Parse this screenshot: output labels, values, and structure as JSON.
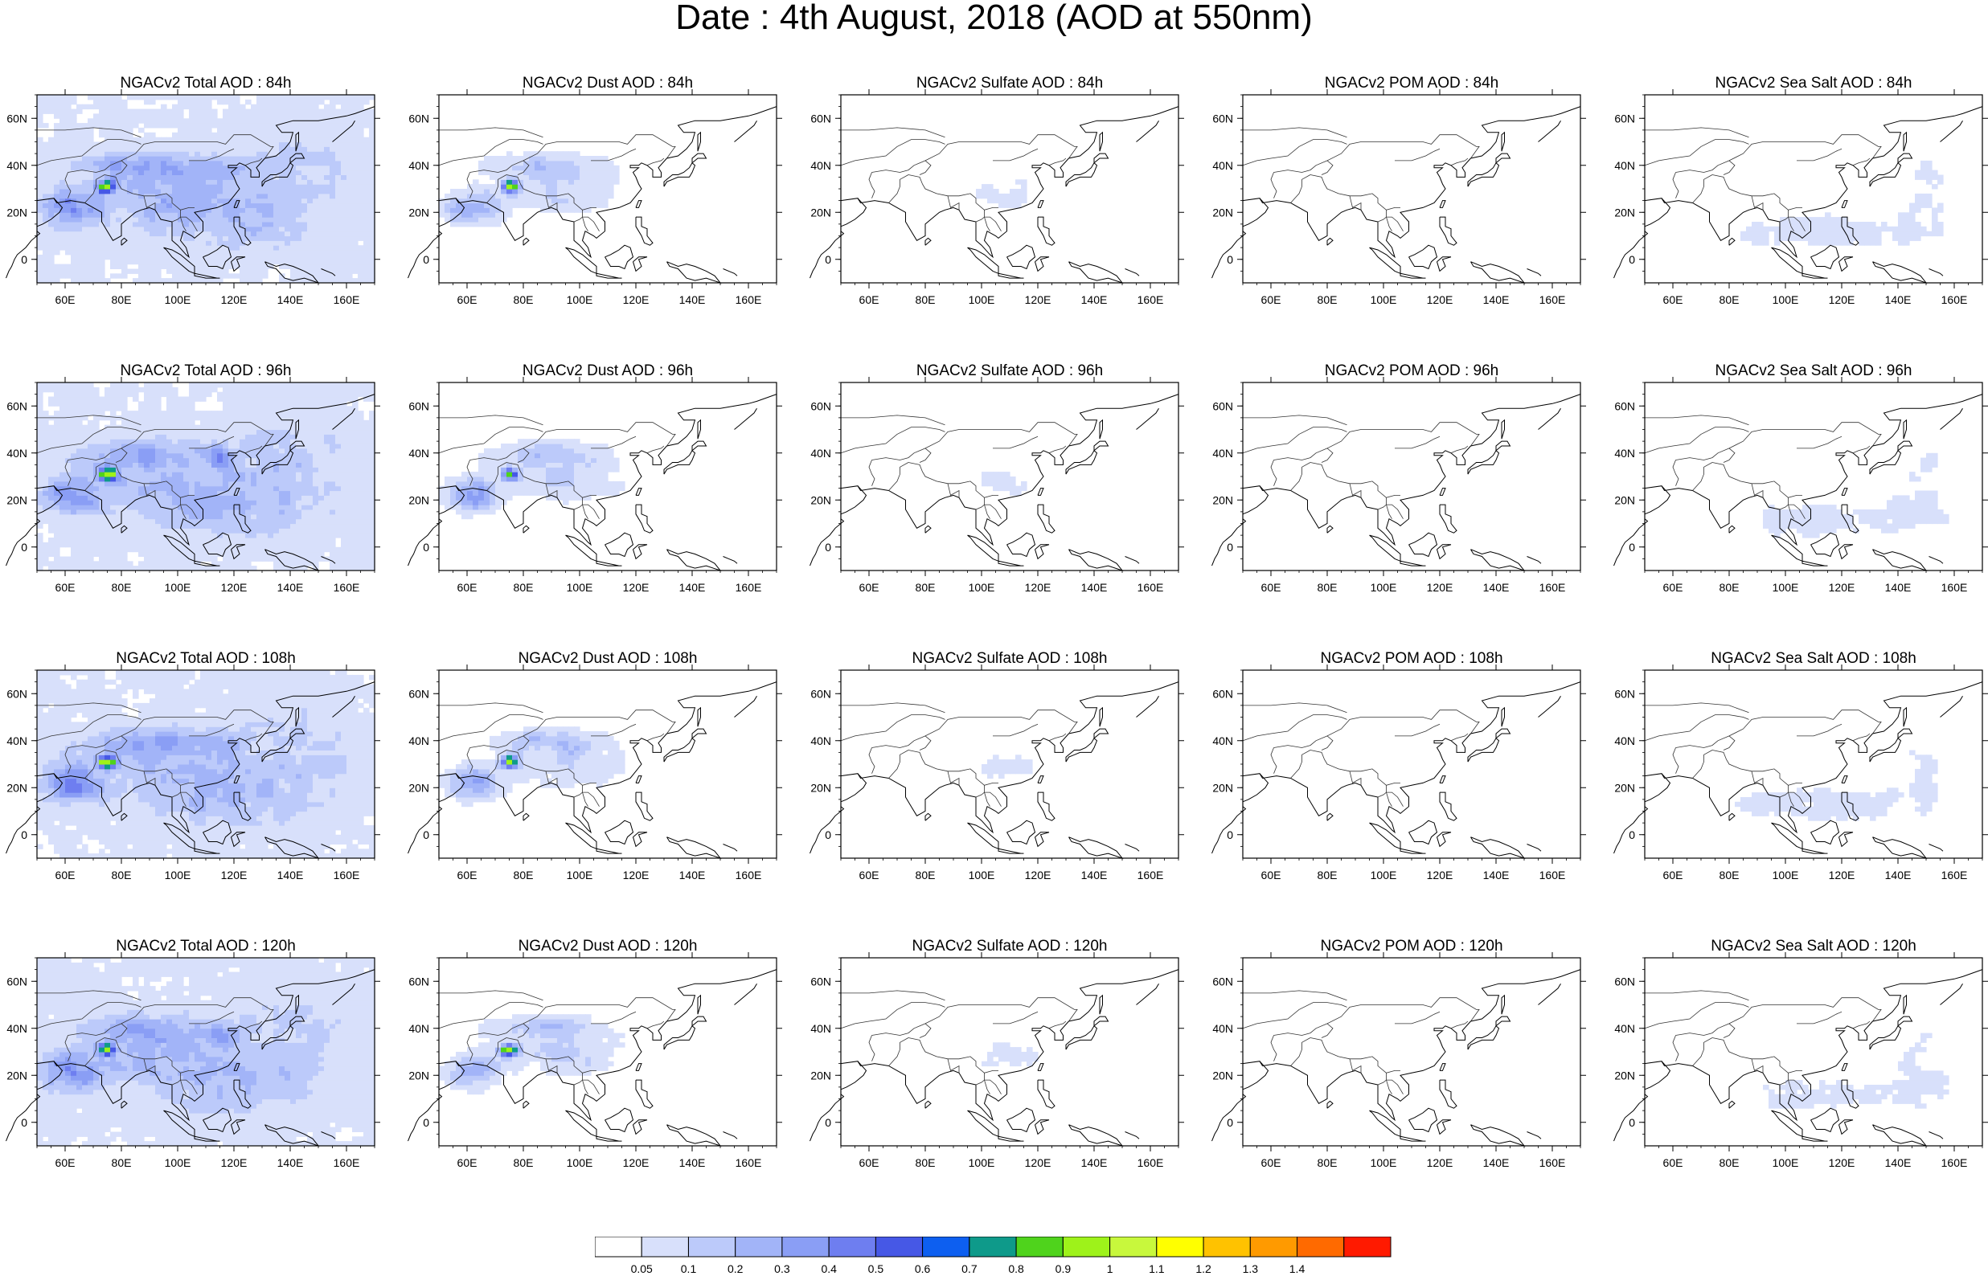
{
  "title": "Date : 4th August, 2018 (AOD at 550nm)",
  "map": {
    "lon_ticks": [
      "60E",
      "80E",
      "100E",
      "120E",
      "140E",
      "160E"
    ],
    "lat_ticks": [
      "60N",
      "40N",
      "20N",
      "0"
    ]
  },
  "panels": [
    {
      "title": "NGACv2 Total AOD : 84h",
      "species": "total",
      "hour": 84
    },
    {
      "title": "NGACv2 Dust AOD : 84h",
      "species": "dust",
      "hour": 84
    },
    {
      "title": "NGACv2 Sulfate AOD : 84h",
      "species": "sulfate",
      "hour": 84
    },
    {
      "title": "NGACv2 POM AOD : 84h",
      "species": "pom",
      "hour": 84
    },
    {
      "title": "NGACv2 Sea Salt AOD : 84h",
      "species": "seasalt",
      "hour": 84
    },
    {
      "title": "NGACv2 Total AOD : 96h",
      "species": "total",
      "hour": 96
    },
    {
      "title": "NGACv2 Dust AOD : 96h",
      "species": "dust",
      "hour": 96
    },
    {
      "title": "NGACv2 Sulfate AOD : 96h",
      "species": "sulfate",
      "hour": 96
    },
    {
      "title": "NGACv2 POM AOD : 96h",
      "species": "pom",
      "hour": 96
    },
    {
      "title": "NGACv2 Sea Salt AOD : 96h",
      "species": "seasalt",
      "hour": 96
    },
    {
      "title": "NGACv2 Total AOD : 108h",
      "species": "total",
      "hour": 108
    },
    {
      "title": "NGACv2 Dust AOD : 108h",
      "species": "dust",
      "hour": 108
    },
    {
      "title": "NGACv2 Sulfate AOD : 108h",
      "species": "sulfate",
      "hour": 108
    },
    {
      "title": "NGACv2 POM AOD : 108h",
      "species": "pom",
      "hour": 108
    },
    {
      "title": "NGACv2 Sea Salt AOD : 108h",
      "species": "seasalt",
      "hour": 108
    },
    {
      "title": "NGACv2 Total AOD : 120h",
      "species": "total",
      "hour": 120
    },
    {
      "title": "NGACv2 Dust AOD : 120h",
      "species": "dust",
      "hour": 120
    },
    {
      "title": "NGACv2 Sulfate AOD : 120h",
      "species": "sulfate",
      "hour": 120
    },
    {
      "title": "NGACv2 POM AOD : 120h",
      "species": "pom",
      "hour": 120
    },
    {
      "title": "NGACv2 Sea Salt  AOD : 120h",
      "species": "seasalt",
      "hour": 120
    }
  ],
  "colorbar": {
    "labels": [
      "0.05",
      "0.1",
      "0.2",
      "0.3",
      "0.4",
      "0.5",
      "0.6",
      "0.7",
      "0.8",
      "0.9",
      "1",
      "1.1",
      "1.2",
      "1.3",
      "1.4"
    ],
    "colors": [
      "#ffffff",
      "#d8e0fb",
      "#bccafa",
      "#a2b4f8",
      "#8a9ef5",
      "#6e7ef0",
      "#4658e6",
      "#0d5ff0",
      "#0e9a8a",
      "#4fd31c",
      "#9ef21a",
      "#c8f83c",
      "#ffff00",
      "#ffc200",
      "#ff9a00",
      "#ff6a00",
      "#ff1a00"
    ]
  }
}
